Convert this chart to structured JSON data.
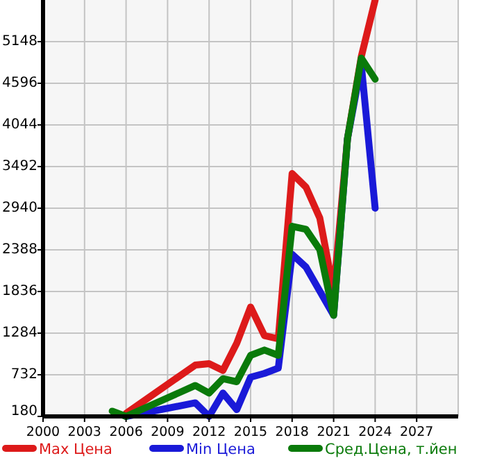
{
  "chart_data": {
    "type": "line",
    "x": [
      2006,
      2011,
      2012,
      2013,
      2014,
      2015,
      2016,
      2017,
      2018,
      2019,
      2020,
      2021,
      2022,
      2023,
      2024
    ],
    "series": [
      {
        "name": "Max Цена",
        "color": "#dd1a1a",
        "values": [
          220,
          860,
          880,
          790,
          1150,
          1630,
          1250,
          1210,
          3400,
          3220,
          2810,
          1840,
          3860,
          4950,
          5700
        ]
      },
      {
        "name": "Min Цена",
        "color": "#1a1ad8",
        "values": [
          180,
          360,
          180,
          490,
          270,
          700,
          750,
          820,
          2330,
          2160,
          1840,
          1520,
          3860,
          4840,
          2940
        ]
      },
      {
        "name": "Сред.Цена, т.йен",
        "color": "#0a7a0a",
        "x": [
          2005,
          2006,
          2011,
          2012,
          2013,
          2014,
          2015,
          2016,
          2017,
          2018,
          2019,
          2020,
          2021,
          2022,
          2023,
          2024
        ],
        "values": [
          250,
          180,
          590,
          490,
          680,
          640,
          990,
          1060,
          990,
          2700,
          2660,
          2390,
          1520,
          3860,
          4930,
          4650
        ]
      }
    ],
    "xlim": [
      2000,
      2030
    ],
    "xticks": [
      2000,
      2003,
      2006,
      2009,
      2012,
      2015,
      2018,
      2021,
      2024,
      2027
    ],
    "ylim": [
      180,
      5700
    ],
    "yticks": [
      180,
      732,
      1284,
      1836,
      2388,
      2940,
      3492,
      4044,
      4596,
      5148
    ],
    "grid": true,
    "legend": "bottom",
    "line_style": "solid",
    "marker": "none"
  }
}
